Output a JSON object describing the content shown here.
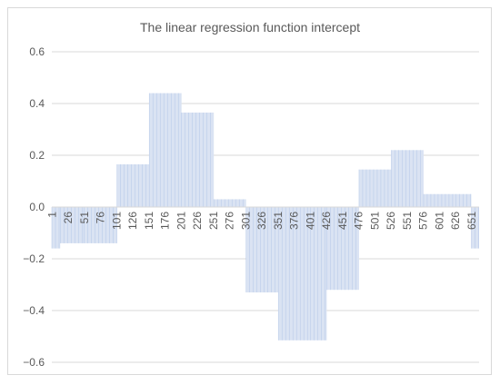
{
  "chart_data": {
    "type": "bar",
    "title": "The linear regression function intercept",
    "xlabel": "",
    "ylabel": "",
    "ylim": [
      -0.6,
      0.6
    ],
    "y_ticks": [
      "0.6",
      "0.4",
      "0.2",
      "0.0",
      "−0.2",
      "−0.4",
      "−0.6"
    ],
    "y_tick_values": [
      0.6,
      0.4,
      0.2,
      0.0,
      -0.2,
      -0.4,
      -0.6
    ],
    "x_tick_labels": [
      "1",
      "26",
      "51",
      "76",
      "101",
      "126",
      "151",
      "176",
      "201",
      "226",
      "251",
      "276",
      "301",
      "326",
      "351",
      "376",
      "401",
      "426",
      "451",
      "476",
      "501",
      "526",
      "551",
      "576",
      "601",
      "626",
      "651"
    ],
    "x_range": [
      1,
      662
    ],
    "segments": [
      {
        "start": 1,
        "end": 13,
        "value": -0.16
      },
      {
        "start": 14,
        "end": 50,
        "value": -0.14
      },
      {
        "start": 51,
        "end": 101,
        "value": -0.14
      },
      {
        "start": 102,
        "end": 151,
        "value": 0.165
      },
      {
        "start": 152,
        "end": 201,
        "value": 0.44
      },
      {
        "start": 202,
        "end": 251,
        "value": 0.365
      },
      {
        "start": 252,
        "end": 301,
        "value": 0.03
      },
      {
        "start": 302,
        "end": 351,
        "value": -0.33
      },
      {
        "start": 352,
        "end": 401,
        "value": -0.515
      },
      {
        "start": 402,
        "end": 426,
        "value": -0.515
      },
      {
        "start": 427,
        "end": 476,
        "value": -0.32
      },
      {
        "start": 477,
        "end": 526,
        "value": 0.145
      },
      {
        "start": 527,
        "end": 576,
        "value": 0.22
      },
      {
        "start": 577,
        "end": 626,
        "value": 0.05
      },
      {
        "start": 627,
        "end": 650,
        "value": 0.05
      },
      {
        "start": 651,
        "end": 662,
        "value": -0.16
      }
    ],
    "grid": true,
    "legend": "none",
    "colors": {
      "bar_fill": "#dae3f3",
      "bar_line": "#b4c7e7",
      "grid": "#d9d9d9",
      "text": "#595959"
    }
  }
}
